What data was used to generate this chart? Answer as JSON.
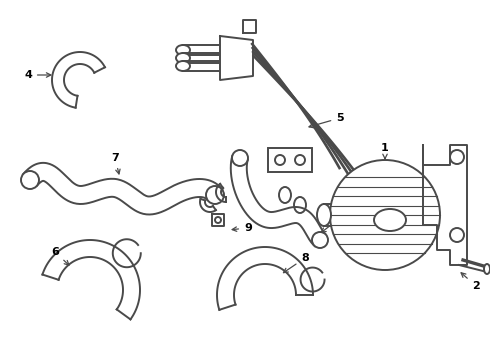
{
  "bg_color": "#ffffff",
  "line_color": "#4a4a4a",
  "text_color": "#000000",
  "figsize": [
    4.9,
    3.6
  ],
  "dpi": 100,
  "lw": 1.4
}
